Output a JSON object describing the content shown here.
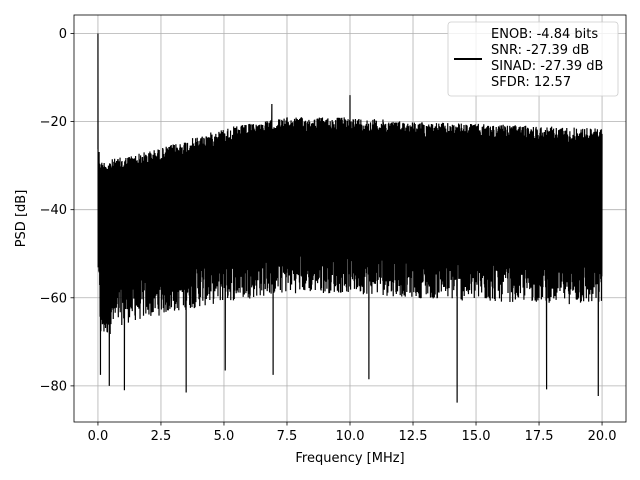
{
  "chart_data": {
    "type": "line",
    "title": "",
    "xlabel": "Frequency [MHz]",
    "ylabel": "PSD [dB]",
    "xlim": [
      -0.95,
      20.95
    ],
    "ylim": [
      -88.2,
      4.2
    ],
    "xticks": [
      0.0,
      2.5,
      5.0,
      7.5,
      10.0,
      12.5,
      15.0,
      17.5,
      20.0
    ],
    "xtick_labels": [
      "0.0",
      "2.5",
      "5.0",
      "7.5",
      "10.0",
      "12.5",
      "15.0",
      "17.5",
      "20.0"
    ],
    "yticks": [
      0,
      -20,
      -40,
      -60,
      -80
    ],
    "ytick_labels": [
      "0",
      "−20",
      "−40",
      "−60",
      "−80"
    ],
    "grid": true,
    "legend_position": "top-right",
    "series": [
      {
        "name": "ENOB: -4.84 bits\nSNR: -27.39 dB\nSINAD: -27.39 dB\nSFDR: 12.57",
        "color": "#000000",
        "envelope_x": [
          0.0,
          0.1,
          1.0,
          2.5,
          5.0,
          7.5,
          10.0,
          12.5,
          15.0,
          17.5,
          20.0
        ],
        "envelope_top": [
          -24.0,
          -29.0,
          -28.0,
          -26.0,
          -21.5,
          -19.0,
          -19.0,
          -20.0,
          -20.5,
          -21.0,
          -21.5
        ],
        "envelope_floor": [
          -55.0,
          -70.0,
          -66.0,
          -64.0,
          -61.0,
          -59.0,
          -59.0,
          -60.0,
          -61.0,
          -61.0,
          -62.0
        ],
        "peaks": [
          {
            "x": 0.0,
            "y": 0.0
          },
          {
            "x": 6.9,
            "y": -16.0
          },
          {
            "x": 10.0,
            "y": -14.0
          }
        ],
        "dips": [
          {
            "x": 0.1,
            "y": -77.5
          },
          {
            "x": 0.45,
            "y": -80.0
          },
          {
            "x": 1.05,
            "y": -81.0
          },
          {
            "x": 3.5,
            "y": -81.5
          },
          {
            "x": 5.05,
            "y": -76.5
          },
          {
            "x": 6.95,
            "y": -77.5
          },
          {
            "x": 10.75,
            "y": -78.5
          },
          {
            "x": 14.25,
            "y": -83.8
          },
          {
            "x": 17.8,
            "y": -80.8
          },
          {
            "x": 19.85,
            "y": -82.3
          }
        ]
      }
    ]
  }
}
